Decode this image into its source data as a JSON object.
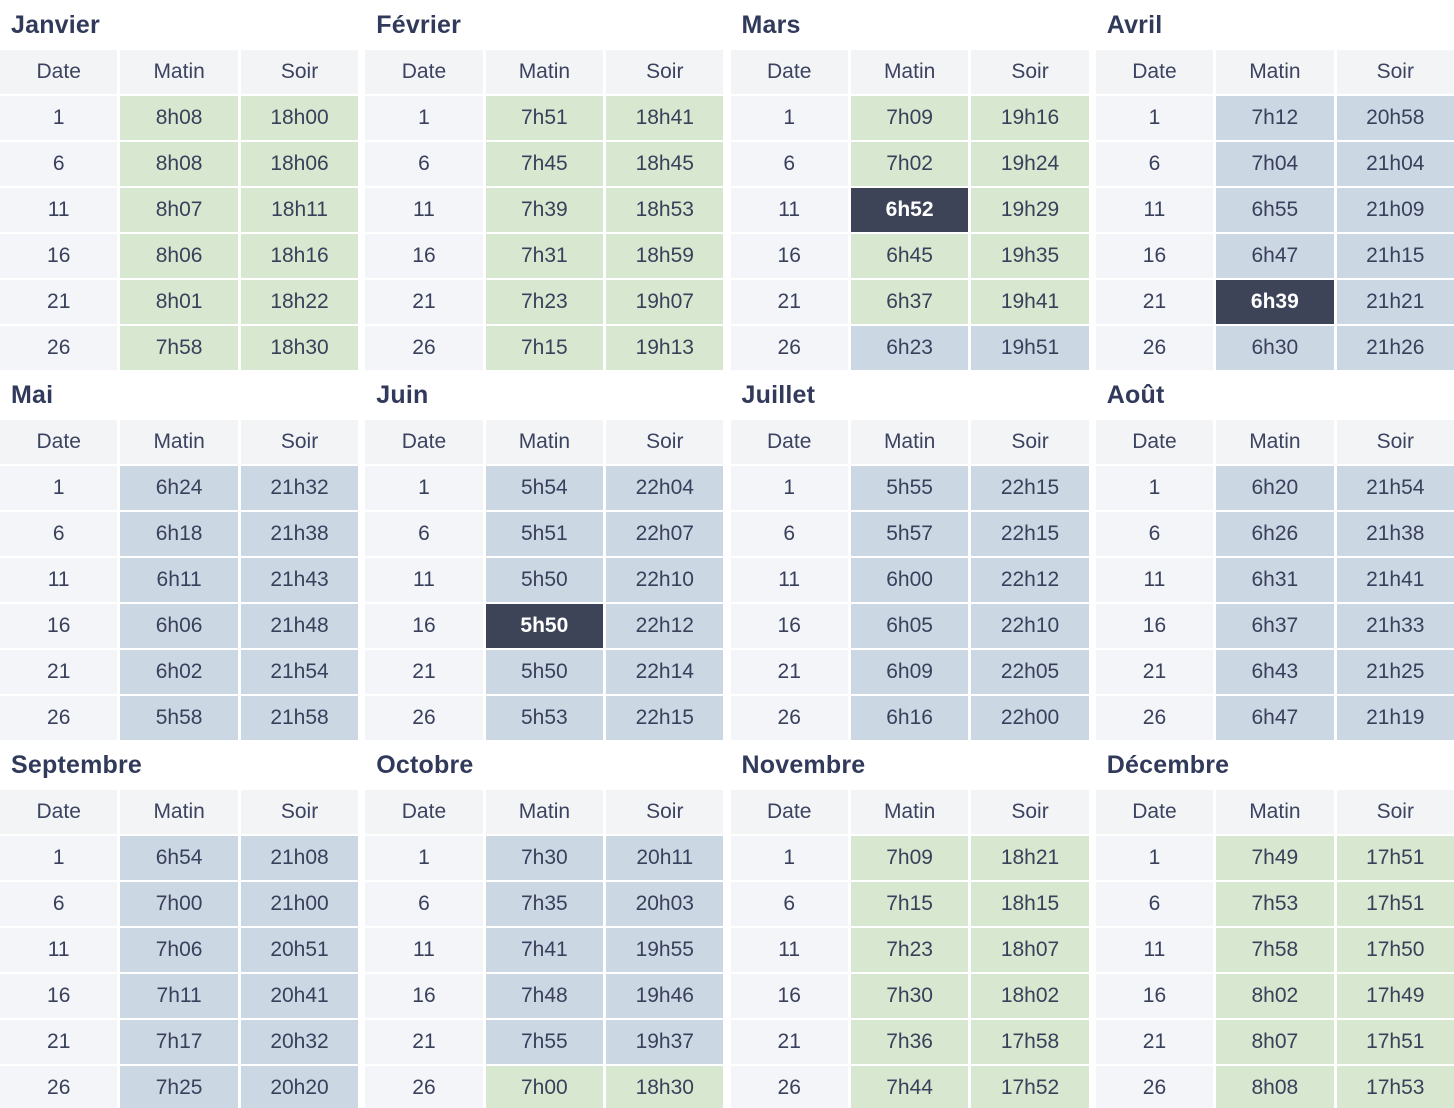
{
  "table_columns": {
    "date": "Date",
    "morning": "Matin",
    "evening": "Soir"
  },
  "colors": {
    "green_cell": "#d8e7cf",
    "blue_cell": "#ccd7e4",
    "dark_highlight_cell": "#3d4458",
    "header_bg": "#f3f4f6",
    "date_column_bg": "#f4f5f8",
    "text": "#39405b",
    "dark_cell_text": "#ffffff"
  },
  "months": [
    {
      "name": "Janvier",
      "rows": [
        {
          "date": "1",
          "morning": "8h08",
          "morning_color": "green",
          "evening": "18h00",
          "evening_color": "green"
        },
        {
          "date": "6",
          "morning": "8h08",
          "morning_color": "green",
          "evening": "18h06",
          "evening_color": "green"
        },
        {
          "date": "11",
          "morning": "8h07",
          "morning_color": "green",
          "evening": "18h11",
          "evening_color": "green"
        },
        {
          "date": "16",
          "morning": "8h06",
          "morning_color": "green",
          "evening": "18h16",
          "evening_color": "green"
        },
        {
          "date": "21",
          "morning": "8h01",
          "morning_color": "green",
          "evening": "18h22",
          "evening_color": "green"
        },
        {
          "date": "26",
          "morning": "7h58",
          "morning_color": "green",
          "evening": "18h30",
          "evening_color": "green"
        }
      ]
    },
    {
      "name": "Février",
      "rows": [
        {
          "date": "1",
          "morning": "7h51",
          "morning_color": "green",
          "evening": "18h41",
          "evening_color": "green"
        },
        {
          "date": "6",
          "morning": "7h45",
          "morning_color": "green",
          "evening": "18h45",
          "evening_color": "green"
        },
        {
          "date": "11",
          "morning": "7h39",
          "morning_color": "green",
          "evening": "18h53",
          "evening_color": "green"
        },
        {
          "date": "16",
          "morning": "7h31",
          "morning_color": "green",
          "evening": "18h59",
          "evening_color": "green"
        },
        {
          "date": "21",
          "morning": "7h23",
          "morning_color": "green",
          "evening": "19h07",
          "evening_color": "green"
        },
        {
          "date": "26",
          "morning": "7h15",
          "morning_color": "green",
          "evening": "19h13",
          "evening_color": "green"
        }
      ]
    },
    {
      "name": "Mars",
      "rows": [
        {
          "date": "1",
          "morning": "7h09",
          "morning_color": "green",
          "evening": "19h16",
          "evening_color": "green"
        },
        {
          "date": "6",
          "morning": "7h02",
          "morning_color": "green",
          "evening": "19h24",
          "evening_color": "green"
        },
        {
          "date": "11",
          "morning": "6h52",
          "morning_color": "dark",
          "evening": "19h29",
          "evening_color": "green"
        },
        {
          "date": "16",
          "morning": "6h45",
          "morning_color": "green",
          "evening": "19h35",
          "evening_color": "green"
        },
        {
          "date": "21",
          "morning": "6h37",
          "morning_color": "green",
          "evening": "19h41",
          "evening_color": "green"
        },
        {
          "date": "26",
          "morning": "6h23",
          "morning_color": "blue",
          "evening": "19h51",
          "evening_color": "blue"
        }
      ]
    },
    {
      "name": "Avril",
      "rows": [
        {
          "date": "1",
          "morning": "7h12",
          "morning_color": "blue",
          "evening": "20h58",
          "evening_color": "blue"
        },
        {
          "date": "6",
          "morning": "7h04",
          "morning_color": "blue",
          "evening": "21h04",
          "evening_color": "blue"
        },
        {
          "date": "11",
          "morning": "6h55",
          "morning_color": "blue",
          "evening": "21h09",
          "evening_color": "blue"
        },
        {
          "date": "16",
          "morning": "6h47",
          "morning_color": "blue",
          "evening": "21h15",
          "evening_color": "blue"
        },
        {
          "date": "21",
          "morning": "6h39",
          "morning_color": "dark",
          "evening": "21h21",
          "evening_color": "blue"
        },
        {
          "date": "26",
          "morning": "6h30",
          "morning_color": "blue",
          "evening": "21h26",
          "evening_color": "blue"
        }
      ]
    },
    {
      "name": "Mai",
      "rows": [
        {
          "date": "1",
          "morning": "6h24",
          "morning_color": "blue",
          "evening": "21h32",
          "evening_color": "blue"
        },
        {
          "date": "6",
          "morning": "6h18",
          "morning_color": "blue",
          "evening": "21h38",
          "evening_color": "blue"
        },
        {
          "date": "11",
          "morning": "6h11",
          "morning_color": "blue",
          "evening": "21h43",
          "evening_color": "blue"
        },
        {
          "date": "16",
          "morning": "6h06",
          "morning_color": "blue",
          "evening": "21h48",
          "evening_color": "blue"
        },
        {
          "date": "21",
          "morning": "6h02",
          "morning_color": "blue",
          "evening": "21h54",
          "evening_color": "blue"
        },
        {
          "date": "26",
          "morning": "5h58",
          "morning_color": "blue",
          "evening": "21h58",
          "evening_color": "blue"
        }
      ]
    },
    {
      "name": "Juin",
      "rows": [
        {
          "date": "1",
          "morning": "5h54",
          "morning_color": "blue",
          "evening": "22h04",
          "evening_color": "blue"
        },
        {
          "date": "6",
          "morning": "5h51",
          "morning_color": "blue",
          "evening": "22h07",
          "evening_color": "blue"
        },
        {
          "date": "11",
          "morning": "5h50",
          "morning_color": "blue",
          "evening": "22h10",
          "evening_color": "blue"
        },
        {
          "date": "16",
          "morning": "5h50",
          "morning_color": "dark",
          "evening": "22h12",
          "evening_color": "blue"
        },
        {
          "date": "21",
          "morning": "5h50",
          "morning_color": "blue",
          "evening": "22h14",
          "evening_color": "blue"
        },
        {
          "date": "26",
          "morning": "5h53",
          "morning_color": "blue",
          "evening": "22h15",
          "evening_color": "blue"
        }
      ]
    },
    {
      "name": "Juillet",
      "rows": [
        {
          "date": "1",
          "morning": "5h55",
          "morning_color": "blue",
          "evening": "22h15",
          "evening_color": "blue"
        },
        {
          "date": "6",
          "morning": "5h57",
          "morning_color": "blue",
          "evening": "22h15",
          "evening_color": "blue"
        },
        {
          "date": "11",
          "morning": "6h00",
          "morning_color": "blue",
          "evening": "22h12",
          "evening_color": "blue"
        },
        {
          "date": "16",
          "morning": "6h05",
          "morning_color": "blue",
          "evening": "22h10",
          "evening_color": "blue"
        },
        {
          "date": "21",
          "morning": "6h09",
          "morning_color": "blue",
          "evening": "22h05",
          "evening_color": "blue"
        },
        {
          "date": "26",
          "morning": "6h16",
          "morning_color": "blue",
          "evening": "22h00",
          "evening_color": "blue"
        }
      ]
    },
    {
      "name": "Août",
      "rows": [
        {
          "date": "1",
          "morning": "6h20",
          "morning_color": "blue",
          "evening": "21h54",
          "evening_color": "blue"
        },
        {
          "date": "6",
          "morning": "6h26",
          "morning_color": "blue",
          "evening": "21h38",
          "evening_color": "blue"
        },
        {
          "date": "11",
          "morning": "6h31",
          "morning_color": "blue",
          "evening": "21h41",
          "evening_color": "blue"
        },
        {
          "date": "16",
          "morning": "6h37",
          "morning_color": "blue",
          "evening": "21h33",
          "evening_color": "blue"
        },
        {
          "date": "21",
          "morning": "6h43",
          "morning_color": "blue",
          "evening": "21h25",
          "evening_color": "blue"
        },
        {
          "date": "26",
          "morning": "6h47",
          "morning_color": "blue",
          "evening": "21h19",
          "evening_color": "blue"
        }
      ]
    },
    {
      "name": "Septembre",
      "rows": [
        {
          "date": "1",
          "morning": "6h54",
          "morning_color": "blue",
          "evening": "21h08",
          "evening_color": "blue"
        },
        {
          "date": "6",
          "morning": "7h00",
          "morning_color": "blue",
          "evening": "21h00",
          "evening_color": "blue"
        },
        {
          "date": "11",
          "morning": "7h06",
          "morning_color": "blue",
          "evening": "20h51",
          "evening_color": "blue"
        },
        {
          "date": "16",
          "morning": "7h11",
          "morning_color": "blue",
          "evening": "20h41",
          "evening_color": "blue"
        },
        {
          "date": "21",
          "morning": "7h17",
          "morning_color": "blue",
          "evening": "20h32",
          "evening_color": "blue"
        },
        {
          "date": "26",
          "morning": "7h25",
          "morning_color": "blue",
          "evening": "20h20",
          "evening_color": "blue"
        }
      ]
    },
    {
      "name": "Octobre",
      "rows": [
        {
          "date": "1",
          "morning": "7h30",
          "morning_color": "blue",
          "evening": "20h11",
          "evening_color": "blue"
        },
        {
          "date": "6",
          "morning": "7h35",
          "morning_color": "blue",
          "evening": "20h03",
          "evening_color": "blue"
        },
        {
          "date": "11",
          "morning": "7h41",
          "morning_color": "blue",
          "evening": "19h55",
          "evening_color": "blue"
        },
        {
          "date": "16",
          "morning": "7h48",
          "morning_color": "blue",
          "evening": "19h46",
          "evening_color": "blue"
        },
        {
          "date": "21",
          "morning": "7h55",
          "morning_color": "blue",
          "evening": "19h37",
          "evening_color": "blue"
        },
        {
          "date": "26",
          "morning": "7h00",
          "morning_color": "green",
          "evening": "18h30",
          "evening_color": "green"
        }
      ]
    },
    {
      "name": "Novembre",
      "rows": [
        {
          "date": "1",
          "morning": "7h09",
          "morning_color": "green",
          "evening": "18h21",
          "evening_color": "green"
        },
        {
          "date": "6",
          "morning": "7h15",
          "morning_color": "green",
          "evening": "18h15",
          "evening_color": "green"
        },
        {
          "date": "11",
          "morning": "7h23",
          "morning_color": "green",
          "evening": "18h07",
          "evening_color": "green"
        },
        {
          "date": "16",
          "morning": "7h30",
          "morning_color": "green",
          "evening": "18h02",
          "evening_color": "green"
        },
        {
          "date": "21",
          "morning": "7h36",
          "morning_color": "green",
          "evening": "17h58",
          "evening_color": "green"
        },
        {
          "date": "26",
          "morning": "7h44",
          "morning_color": "green",
          "evening": "17h52",
          "evening_color": "green"
        }
      ]
    },
    {
      "name": "Décembre",
      "rows": [
        {
          "date": "1",
          "morning": "7h49",
          "morning_color": "green",
          "evening": "17h51",
          "evening_color": "green"
        },
        {
          "date": "6",
          "morning": "7h53",
          "morning_color": "green",
          "evening": "17h51",
          "evening_color": "green"
        },
        {
          "date": "11",
          "morning": "7h58",
          "morning_color": "green",
          "evening": "17h50",
          "evening_color": "green"
        },
        {
          "date": "16",
          "morning": "8h02",
          "morning_color": "green",
          "evening": "17h49",
          "evening_color": "green"
        },
        {
          "date": "21",
          "morning": "8h07",
          "morning_color": "green",
          "evening": "17h51",
          "evening_color": "green"
        },
        {
          "date": "26",
          "morning": "8h08",
          "morning_color": "green",
          "evening": "17h53",
          "evening_color": "green"
        }
      ]
    }
  ]
}
